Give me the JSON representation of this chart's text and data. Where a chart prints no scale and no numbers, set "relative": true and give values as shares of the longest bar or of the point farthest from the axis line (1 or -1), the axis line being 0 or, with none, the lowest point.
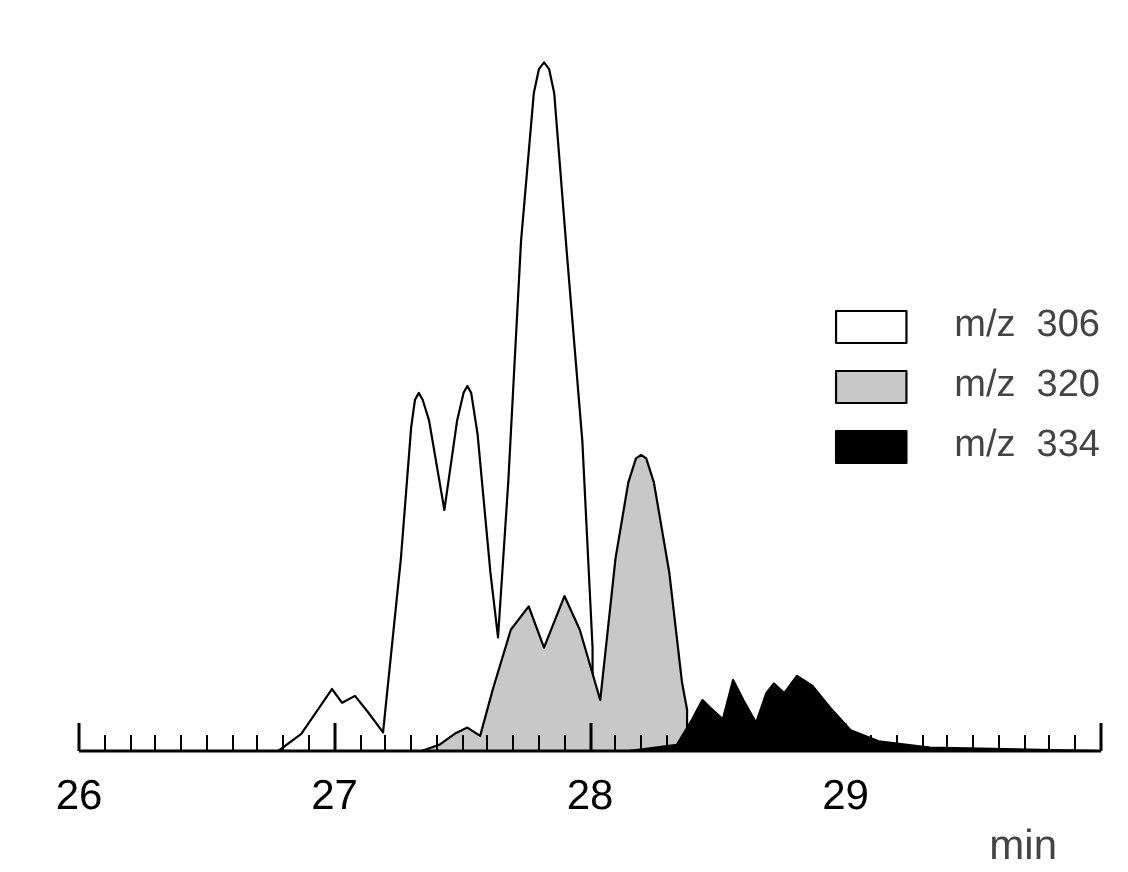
{
  "chart_data": {
    "type": "area",
    "relative": true,
    "xlabel": "min",
    "xlim": [
      26,
      30
    ],
    "xticks": [
      26,
      27,
      28,
      29,
      {
        "value": 30,
        "label": null
      }
    ],
    "legend": "right",
    "grid": false,
    "tick_labels": "x",
    "series": [
      {
        "name": "m/z  306",
        "color": "#ffffff",
        "x": [
          26.03,
          26.78,
          26.87,
          26.99,
          27.03,
          27.08,
          27.13,
          27.19,
          27.26,
          27.3,
          27.315,
          27.33,
          27.345,
          27.37,
          27.43,
          27.48,
          27.505,
          27.52,
          27.535,
          27.56,
          27.61,
          27.64,
          27.68,
          27.73,
          27.78,
          27.8,
          27.82,
          27.84,
          27.86,
          27.91,
          27.97,
          28.01
        ],
        "values": [
          0,
          0,
          0.025,
          0.09,
          0.07,
          0.08,
          0.057,
          0.027,
          0.28,
          0.47,
          0.51,
          0.52,
          0.51,
          0.48,
          0.35,
          0.48,
          0.52,
          0.53,
          0.52,
          0.46,
          0.26,
          0.165,
          0.39,
          0.74,
          0.955,
          0.99,
          1.0,
          0.99,
          0.955,
          0.72,
          0.45,
          0.15
        ]
      },
      {
        "name": "m/z  320",
        "color": "#c8c8c8",
        "x": [
          27.34,
          27.41,
          27.47,
          27.52,
          27.57,
          27.62,
          27.69,
          27.76,
          27.82,
          27.9,
          27.96,
          28.04,
          28.1,
          28.15,
          28.18,
          28.2,
          28.22,
          28.25,
          28.31,
          28.36,
          28.38
        ],
        "values": [
          0,
          0.009,
          0.025,
          0.034,
          0.022,
          0.09,
          0.176,
          0.21,
          0.15,
          0.225,
          0.176,
          0.074,
          0.28,
          0.39,
          0.425,
          0.43,
          0.425,
          0.39,
          0.26,
          0.1,
          0.06
        ]
      },
      {
        "name": "m/z  334",
        "color": "#000000",
        "x": [
          28.15,
          28.34,
          28.4,
          28.44,
          28.47,
          28.52,
          28.56,
          28.6,
          28.65,
          28.69,
          28.72,
          28.76,
          28.81,
          28.87,
          28.94,
          29.02,
          29.13,
          29.33,
          30.0
        ],
        "values": [
          0,
          0.009,
          0.046,
          0.074,
          0.063,
          0.046,
          0.103,
          0.074,
          0.041,
          0.084,
          0.098,
          0.084,
          0.109,
          0.095,
          0.063,
          0.03,
          0.014,
          0.005,
          0
        ]
      }
    ]
  }
}
